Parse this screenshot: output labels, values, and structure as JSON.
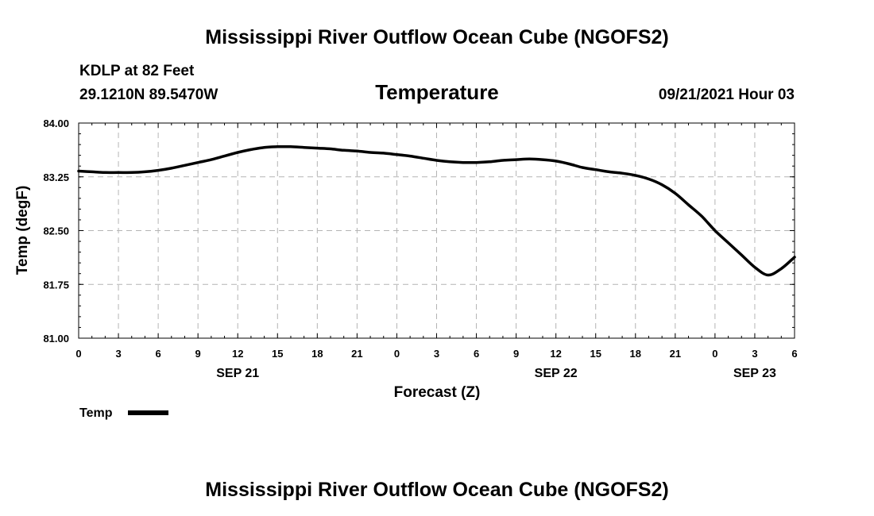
{
  "header": {
    "title": "Mississippi River Outflow Ocean Cube (NGOFS2)",
    "station": "KDLP at 82 Feet",
    "coords": "29.1210N  89.5470W",
    "variable": "Temperature",
    "datetime": "09/21/2021 Hour 03"
  },
  "footer": {
    "title": "Mississippi River Outflow Ocean Cube (NGOFS2)"
  },
  "legend": {
    "label": "Temp"
  },
  "colors": {
    "line": "#000000",
    "grid": "#b4b4b4"
  },
  "chart_data": {
    "type": "line",
    "title": "Temperature",
    "xlabel": "Forecast (Z)",
    "ylabel": "Temp (degF)",
    "xlim": [
      0,
      54
    ],
    "ylim": [
      81.0,
      84.0
    ],
    "grid": true,
    "x_tick_values": [
      0,
      3,
      6,
      9,
      12,
      15,
      18,
      21,
      24,
      27,
      30,
      33,
      36,
      39,
      42,
      45,
      48,
      51,
      54
    ],
    "x_tick_labels": [
      "0",
      "3",
      "6",
      "9",
      "12",
      "15",
      "18",
      "21",
      "0",
      "3",
      "6",
      "9",
      "12",
      "15",
      "18",
      "21",
      "0",
      "3",
      "6"
    ],
    "y_tick_values": [
      81.0,
      81.75,
      82.5,
      83.25,
      84.0
    ],
    "y_tick_labels": [
      "81.00",
      "81.75",
      "82.50",
      "83.25",
      "84.00"
    ],
    "date_labels": [
      {
        "label": "SEP 21",
        "x": 12
      },
      {
        "label": "SEP 22",
        "x": 36
      },
      {
        "label": "SEP 23",
        "x": 51
      }
    ],
    "legend_position": "bottom-left",
    "series": [
      {
        "name": "Temp",
        "x": [
          0,
          1,
          2,
          3,
          4,
          5,
          6,
          7,
          8,
          9,
          10,
          11,
          12,
          13,
          14,
          15,
          16,
          17,
          18,
          19,
          20,
          21,
          22,
          23,
          24,
          25,
          26,
          27,
          28,
          29,
          30,
          31,
          32,
          33,
          34,
          35,
          36,
          37,
          38,
          39,
          40,
          41,
          42,
          43,
          44,
          45,
          46,
          47,
          48,
          49,
          50,
          51,
          52,
          53,
          54
        ],
        "values": [
          83.33,
          83.32,
          83.31,
          83.31,
          83.31,
          83.32,
          83.34,
          83.37,
          83.41,
          83.45,
          83.49,
          83.54,
          83.59,
          83.63,
          83.66,
          83.67,
          83.67,
          83.66,
          83.65,
          83.64,
          83.62,
          83.61,
          83.59,
          83.58,
          83.56,
          83.54,
          83.51,
          83.48,
          83.46,
          83.45,
          83.45,
          83.46,
          83.48,
          83.49,
          83.5,
          83.49,
          83.47,
          83.43,
          83.38,
          83.35,
          83.32,
          83.3,
          83.27,
          83.22,
          83.14,
          83.02,
          82.86,
          82.7,
          82.5,
          82.33,
          82.16,
          81.99,
          81.88,
          81.97,
          82.13
        ]
      }
    ]
  }
}
